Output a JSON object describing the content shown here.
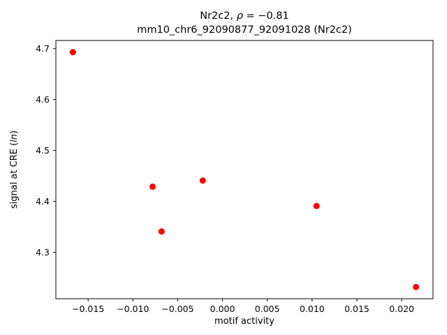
{
  "figure": {
    "background": "#ffffff"
  },
  "chart_data": {
    "type": "scatter",
    "title": "Nr2c2, ρ = −0.81",
    "title_parts": {
      "prefix": "Nr2c2, ",
      "rho": "ρ",
      "rest": " = −0.81"
    },
    "subtitle": "mm10_chr6_92090877_92091028 (Nr2c2)",
    "xlabel": "motif activity",
    "ylabel_parts": {
      "prefix": "signal at CRE (",
      "italic": "ln",
      "suffix": ")"
    },
    "ylabel": "signal at CRE (ln)",
    "marker_color": "#ff0000",
    "grid": false,
    "legend": null,
    "xlim": [
      -0.0186,
      0.0235
    ],
    "ylim": [
      4.209,
      4.716
    ],
    "points": [
      {
        "x": -0.0167,
        "y": 4.693
      },
      {
        "x": -0.0078,
        "y": 4.429
      },
      {
        "x": -0.0068,
        "y": 4.341
      },
      {
        "x": -0.0022,
        "y": 4.441
      },
      {
        "x": 0.0105,
        "y": 4.391
      },
      {
        "x": 0.0216,
        "y": 4.232
      }
    ],
    "xticks": {
      "values": [
        -0.015,
        -0.01,
        -0.005,
        0.0,
        0.005,
        0.01,
        0.015,
        0.02
      ],
      "labels": [
        "−0.015",
        "−0.010",
        "−0.005",
        "0.000",
        "0.005",
        "0.010",
        "0.015",
        "0.020"
      ]
    },
    "yticks": {
      "values": [
        4.3,
        4.4,
        4.5,
        4.6,
        4.7
      ],
      "labels": [
        "4.3",
        "4.4",
        "4.5",
        "4.6",
        "4.7"
      ]
    }
  }
}
